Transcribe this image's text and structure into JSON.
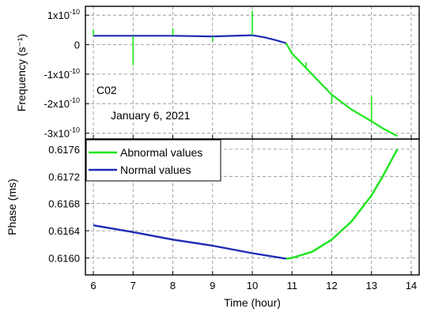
{
  "chart_data": [
    {
      "type": "line",
      "panel": "top",
      "ylabel": "Frequency (s⁻¹)",
      "x_range": [
        5.8,
        14.2
      ],
      "ylim": [
        -3.2,
        1.3
      ],
      "y_unit_factor": "1e-10",
      "yticks": [
        {
          "value": 1,
          "mant": "1x10",
          "exp": "-10"
        },
        {
          "value": 0,
          "mant": "0",
          "exp": ""
        },
        {
          "value": -1,
          "mant": "-1x10",
          "exp": "-10"
        },
        {
          "value": -2,
          "mant": "-2x10",
          "exp": "-10"
        },
        {
          "value": -3,
          "mant": "-3x10",
          "exp": "-10"
        }
      ],
      "grid": true,
      "annotations": [
        "C02",
        "January 6, 2021"
      ],
      "series": [
        {
          "name": "Normal values",
          "color": "#1f2bb5",
          "x": [
            6.0,
            7.0,
            8.0,
            9.0,
            10.0,
            10.3,
            10.6,
            10.85
          ],
          "y": [
            0.3,
            0.3,
            0.3,
            0.28,
            0.32,
            0.25,
            0.15,
            0.05
          ]
        },
        {
          "name": "Abnormal values",
          "color": "#19e619",
          "x": [
            10.85,
            11.0,
            11.5,
            12.0,
            12.5,
            13.0,
            13.3,
            13.65
          ],
          "y": [
            0.05,
            -0.3,
            -1.0,
            -1.7,
            -2.2,
            -2.6,
            -2.85,
            -3.1
          ]
        }
      ],
      "spikes": [
        {
          "x": 6.0,
          "y": 0.5
        },
        {
          "x": 7.0,
          "y": -0.7
        },
        {
          "x": 8.0,
          "y": 0.55
        },
        {
          "x": 9.0,
          "y": 0.1
        },
        {
          "x": 10.0,
          "y": 1.15
        },
        {
          "x": 11.35,
          "y": -0.6
        },
        {
          "x": 12.0,
          "y": -2.0
        },
        {
          "x": 13.0,
          "y": -1.75
        }
      ]
    },
    {
      "type": "line",
      "panel": "bottom",
      "xlabel": "Time (hour)",
      "ylabel": "Phase (ms)",
      "xlim": [
        5.8,
        14.2
      ],
      "ylim": [
        0.61575,
        0.61775
      ],
      "xticks": [
        6,
        7,
        8,
        9,
        10,
        11,
        12,
        13,
        14
      ],
      "yticks": [
        0.616,
        0.6164,
        0.6168,
        0.6172,
        0.6176
      ],
      "ytick_labels": [
        "0.6160",
        "0.6164",
        "0.6168",
        "0.6172",
        "0.6176"
      ],
      "grid": true,
      "legend_position": "top-left",
      "legend": [
        "Abnormal values",
        "Normal values"
      ],
      "series": [
        {
          "name": "Normal values",
          "color": "#1f2bb5",
          "x": [
            6.0,
            7.0,
            8.0,
            9.0,
            10.0,
            10.85
          ],
          "y": [
            0.61648,
            0.61638,
            0.61627,
            0.61618,
            0.61607,
            0.61599
          ]
        },
        {
          "name": "Abnormal values",
          "color": "#19e619",
          "x": [
            10.85,
            11.0,
            11.5,
            12.0,
            12.5,
            13.0,
            13.3,
            13.65
          ],
          "y": [
            0.61599,
            0.616,
            0.61609,
            0.61627,
            0.61654,
            0.61692,
            0.61722,
            0.6176
          ]
        }
      ]
    }
  ]
}
